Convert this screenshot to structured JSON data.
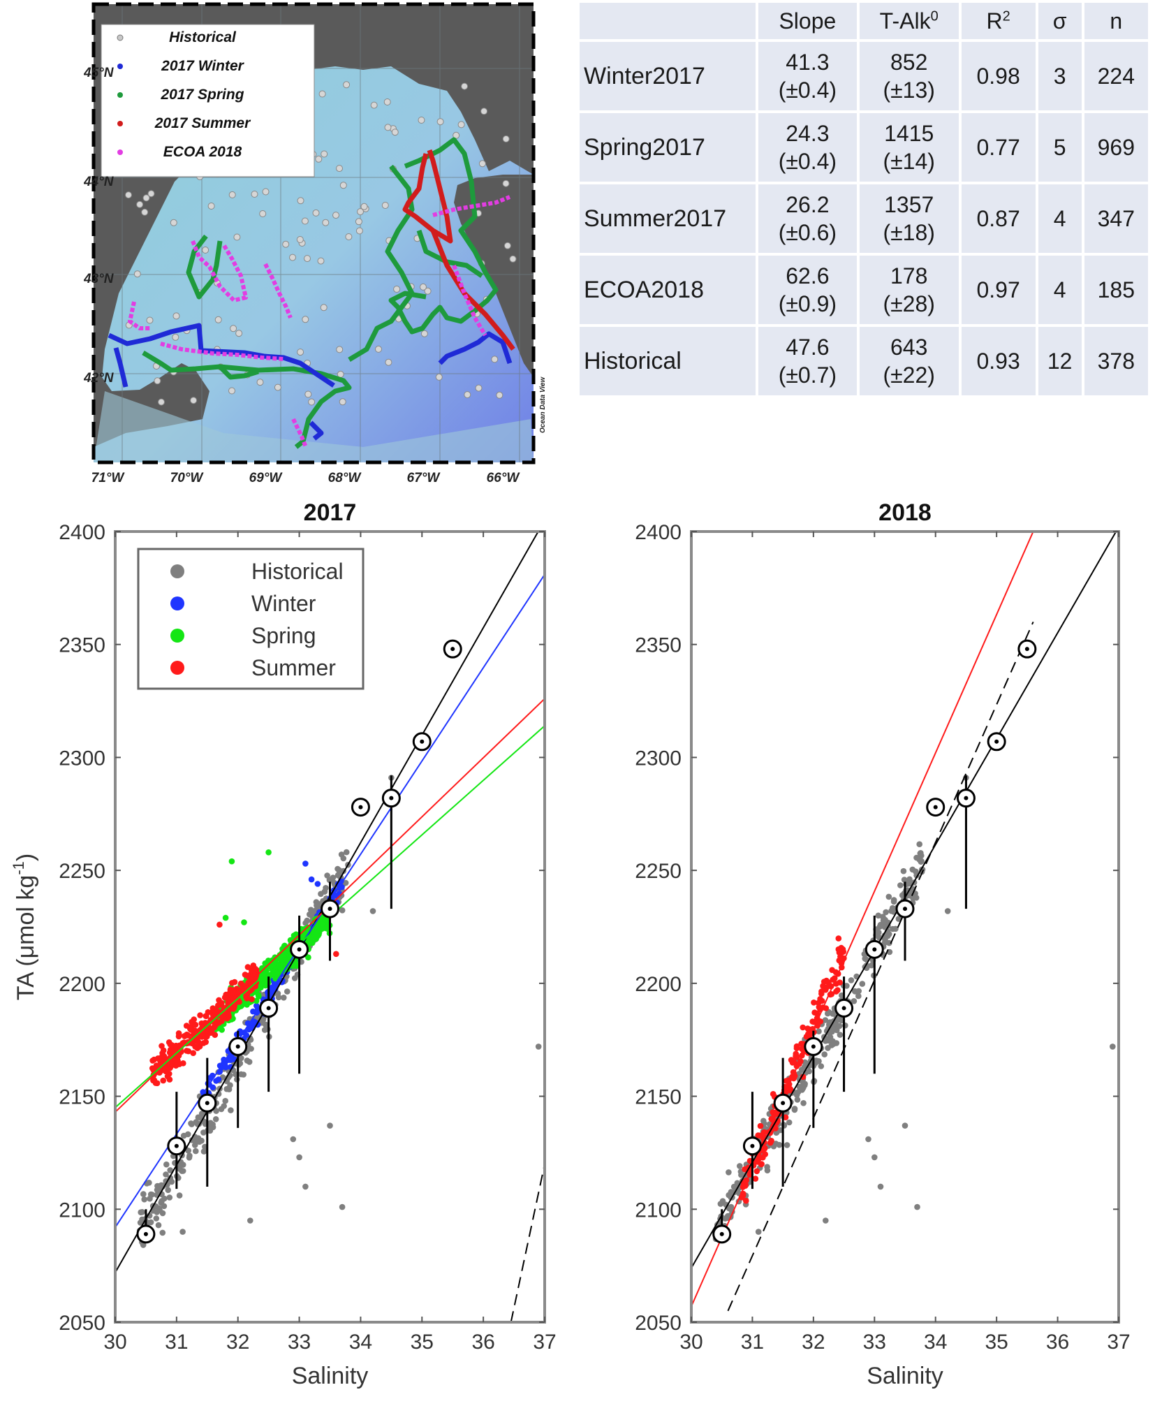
{
  "map": {
    "legend": [
      {
        "label": "Historical",
        "color": "#c8c8c8"
      },
      {
        "label": "2017 Winter",
        "color": "#1f2ad6"
      },
      {
        "label": "2017 Spring",
        "color": "#1e9a3c"
      },
      {
        "label": "2017 Summer",
        "color": "#d11c1c"
      },
      {
        "label": "ECOA 2018",
        "color": "#e23de2"
      }
    ],
    "lat_labels": [
      "45°N",
      "44°N",
      "43°N",
      "42°N"
    ],
    "lon_labels": [
      "71°W",
      "70°W",
      "69°W",
      "68°W",
      "67°W",
      "66°W"
    ],
    "credit": "Ocean Data View"
  },
  "table": {
    "headers": [
      "Slope",
      "T-Alk",
      "R",
      "σ",
      "n"
    ],
    "talk_superscript": "0",
    "r_superscript": "2",
    "rows": [
      {
        "label": "Winter2017",
        "slope": "41.3",
        "slope_err": "(±0.4)",
        "talk": "852",
        "talk_err": "(±13)",
        "r2": "0.98",
        "sigma": "3",
        "n": "224"
      },
      {
        "label": "Spring2017",
        "slope": "24.3",
        "slope_err": "(±0.4)",
        "talk": "1415",
        "talk_err": "(±14)",
        "r2": "0.77",
        "sigma": "5",
        "n": "969"
      },
      {
        "label": "Summer2017",
        "slope": "26.2",
        "slope_err": "(±0.6)",
        "talk": "1357",
        "talk_err": "(±18)",
        "r2": "0.87",
        "sigma": "4",
        "n": "347"
      },
      {
        "label": "ECOA2018",
        "slope": "62.6",
        "slope_err": "(±0.9)",
        "talk": "178",
        "talk_err": "(±28)",
        "r2": "0.97",
        "sigma": "4",
        "n": "185"
      },
      {
        "label": "Historical",
        "slope": "47.6",
        "slope_err": "(±0.7)",
        "talk": "643",
        "talk_err": "(±22)",
        "r2": "0.93",
        "sigma": "12",
        "n": "378"
      }
    ]
  },
  "chart_data": [
    {
      "type": "scatter",
      "title": "2017",
      "xlabel": "Salinity",
      "ylabel": "TA (μmol kg",
      "ylabel_superscript": "-1",
      "ylabel_close": ")",
      "xlim": [
        30,
        37
      ],
      "ylim": [
        2050,
        2400
      ],
      "xticks": [
        "30",
        "31",
        "32",
        "33",
        "34",
        "35",
        "36",
        "37"
      ],
      "yticks": [
        "2050",
        "2100",
        "2150",
        "2200",
        "2250",
        "2300",
        "2350",
        "2400"
      ],
      "legend_position": "top-left",
      "series": [
        {
          "name": "Historical",
          "color": "#7f7f7f"
        },
        {
          "name": "Winter",
          "color": "#1f35ff"
        },
        {
          "name": "Spring",
          "color": "#14e614"
        },
        {
          "name": "Summer",
          "color": "#ff1a1a"
        }
      ],
      "fit_lines": [
        {
          "color": "#000000",
          "dash": false,
          "x": [
            30,
            37
          ],
          "y": [
            2072,
            2405
          ]
        },
        {
          "color": "#1f35ff",
          "dash": false,
          "x": [
            30,
            37
          ],
          "y": [
            2092,
            2381
          ]
        },
        {
          "color": "#ff1a1a",
          "dash": false,
          "x": [
            30,
            37
          ],
          "y": [
            2143,
            2326
          ]
        },
        {
          "color": "#14e614",
          "dash": false,
          "x": [
            30,
            37
          ],
          "y": [
            2145,
            2314
          ]
        },
        {
          "color": "#000000",
          "dash": true,
          "x": [
            36.45,
            37
          ],
          "y": [
            2050,
            2120
          ]
        }
      ],
      "bin_means": [
        {
          "x": 30.5,
          "y": 2089,
          "lo": 2089,
          "hi": 2100
        },
        {
          "x": 31.0,
          "y": 2128,
          "lo": 2109,
          "hi": 2152
        },
        {
          "x": 31.5,
          "y": 2147,
          "lo": 2110,
          "hi": 2167
        },
        {
          "x": 32.0,
          "y": 2172,
          "lo": 2136,
          "hi": 2179
        },
        {
          "x": 32.5,
          "y": 2189,
          "lo": 2152,
          "hi": 2203
        },
        {
          "x": 33.0,
          "y": 2215,
          "lo": 2160,
          "hi": 2230
        },
        {
          "x": 33.5,
          "y": 2233,
          "lo": 2210,
          "hi": 2245
        },
        {
          "x": 34.0,
          "y": 2278,
          "lo": 2278,
          "hi": 2278
        },
        {
          "x": 34.5,
          "y": 2282,
          "lo": 2233,
          "hi": 2292
        },
        {
          "x": 35.0,
          "y": 2307,
          "lo": 2307,
          "hi": 2307
        },
        {
          "x": 35.5,
          "y": 2348,
          "lo": 2348,
          "hi": 2348
        }
      ]
    },
    {
      "type": "scatter",
      "title": "2018",
      "xlabel": "Salinity",
      "xlim": [
        30,
        37
      ],
      "ylim": [
        2050,
        2400
      ],
      "xticks": [
        "30",
        "31",
        "32",
        "33",
        "34",
        "35",
        "36",
        "37"
      ],
      "yticks": [
        "2050",
        "2100",
        "2150",
        "2200",
        "2250",
        "2300",
        "2350",
        "2400"
      ],
      "series": [
        {
          "name": "Historical",
          "color": "#7f7f7f"
        },
        {
          "name": "ECOA 2018",
          "color": "#ff1a1a"
        }
      ],
      "fit_lines": [
        {
          "color": "#ff1a1a",
          "dash": false,
          "x": [
            30,
            35.6
          ],
          "y": [
            2057,
            2400
          ]
        },
        {
          "color": "#000000",
          "dash": false,
          "x": [
            30,
            37
          ],
          "y": [
            2074,
            2402
          ]
        },
        {
          "color": "#000000",
          "dash": true,
          "x": [
            30.6,
            35.6
          ],
          "y": [
            2055,
            2360
          ]
        }
      ],
      "bin_means": [
        {
          "x": 30.5,
          "y": 2089,
          "lo": 2089,
          "hi": 2100
        },
        {
          "x": 31.0,
          "y": 2128,
          "lo": 2109,
          "hi": 2152
        },
        {
          "x": 31.5,
          "y": 2147,
          "lo": 2110,
          "hi": 2167
        },
        {
          "x": 32.0,
          "y": 2172,
          "lo": 2136,
          "hi": 2179
        },
        {
          "x": 32.5,
          "y": 2189,
          "lo": 2152,
          "hi": 2203
        },
        {
          "x": 33.0,
          "y": 2215,
          "lo": 2160,
          "hi": 2230
        },
        {
          "x": 33.5,
          "y": 2233,
          "lo": 2210,
          "hi": 2245
        },
        {
          "x": 34.0,
          "y": 2278,
          "lo": 2278,
          "hi": 2278
        },
        {
          "x": 34.5,
          "y": 2282,
          "lo": 2233,
          "hi": 2292
        },
        {
          "x": 35.0,
          "y": 2307,
          "lo": 2307,
          "hi": 2307
        },
        {
          "x": 35.5,
          "y": 2348,
          "lo": 2348,
          "hi": 2348
        }
      ]
    }
  ]
}
